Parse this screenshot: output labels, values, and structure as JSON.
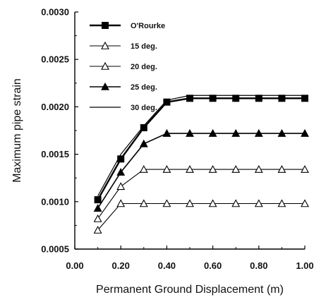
{
  "chart_data": {
    "type": "line",
    "xlabel": "Permanent Ground Displacement (m)",
    "ylabel": "Maximum pipe strain",
    "xlim": [
      0.0,
      1.0
    ],
    "ylim": [
      0.0005,
      0.003
    ],
    "xticks": [
      "0.00",
      "0.20",
      "0.40",
      "0.60",
      "0.80",
      "1.00"
    ],
    "yticks": [
      "0.0005",
      "0.0010",
      "0.0015",
      "0.0020",
      "0.0025",
      "0.0030"
    ],
    "grid": false,
    "legend_position": "top-left",
    "x": [
      0.1,
      0.2,
      0.3,
      0.4,
      0.5,
      0.6,
      0.7,
      0.8,
      0.9,
      1.0
    ],
    "series": [
      {
        "name": "O'Rourke",
        "marker": "square-filled",
        "values": [
          0.00102,
          0.00145,
          0.00178,
          0.00205,
          0.00209,
          0.00209,
          0.00209,
          0.00209,
          0.00209,
          0.00209
        ]
      },
      {
        "name": "15 deg.",
        "marker": "triangle-open",
        "values": [
          0.0007,
          0.00098,
          0.00098,
          0.00098,
          0.00098,
          0.00098,
          0.00098,
          0.00098,
          0.00098,
          0.00098
        ]
      },
      {
        "name": "20 deg.",
        "marker": "triangle-open",
        "values": [
          0.00082,
          0.00116,
          0.00134,
          0.00134,
          0.00134,
          0.00134,
          0.00134,
          0.00134,
          0.00134,
          0.00134
        ]
      },
      {
        "name": "25 deg.",
        "marker": "triangle-filled",
        "values": [
          0.00093,
          0.00131,
          0.00161,
          0.00172,
          0.00172,
          0.00172,
          0.00172,
          0.00172,
          0.00172,
          0.00172
        ]
      },
      {
        "name": "30 deg.",
        "marker": "none",
        "values": [
          0.00106,
          0.0015,
          0.0018,
          0.00207,
          0.00212,
          0.00212,
          0.00212,
          0.00212,
          0.00212,
          0.00212
        ]
      }
    ]
  }
}
